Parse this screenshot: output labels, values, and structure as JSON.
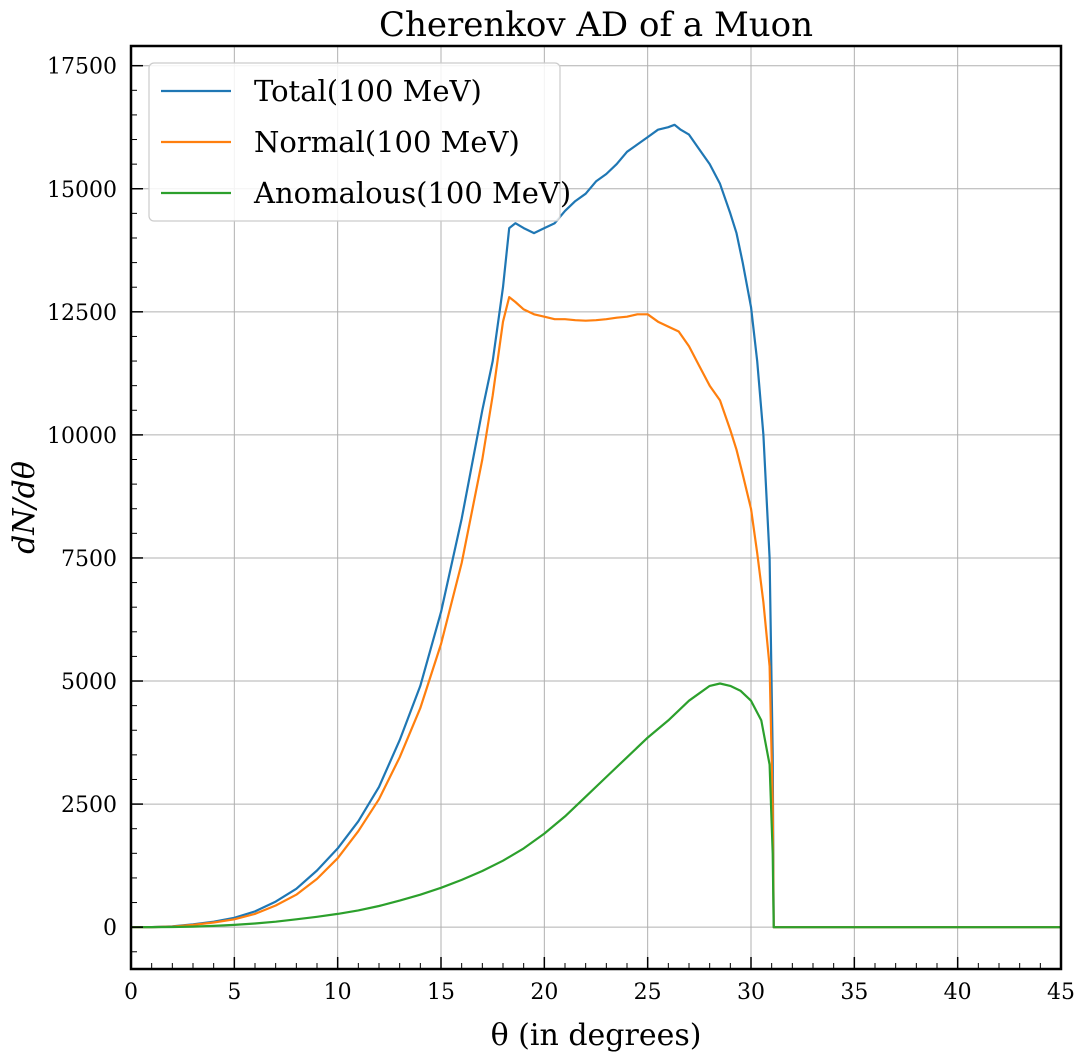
{
  "chart_data": {
    "type": "line",
    "title": "Cherenkov AD of a Muon",
    "xlabel": "θ (in degrees)",
    "ylabel": "dN/dθ",
    "xlim": [
      0,
      45
    ],
    "ylim": [
      -850,
      17900
    ],
    "x_ticks": [
      0,
      5,
      10,
      15,
      20,
      25,
      30,
      35,
      40,
      45
    ],
    "y_ticks": [
      0,
      2500,
      5000,
      7500,
      10000,
      12500,
      15000,
      17500
    ],
    "grid": true,
    "legend_position": "top-left",
    "series": [
      {
        "name": "Total(100 MeV)",
        "color": "#1f77b4",
        "x": [
          0,
          1,
          2,
          3,
          4,
          5,
          6,
          7,
          8,
          9,
          10,
          11,
          12,
          13,
          14,
          15,
          16,
          17,
          17.5,
          18,
          18.3,
          18.6,
          19,
          19.5,
          20,
          20.5,
          21,
          21.5,
          22,
          22.5,
          23,
          23.5,
          24,
          24.5,
          25,
          25.5,
          26,
          26.3,
          26.6,
          27,
          27.5,
          28,
          28.5,
          29,
          29.3,
          29.6,
          30,
          30.3,
          30.6,
          30.9,
          31.05,
          31.1,
          32,
          35,
          40,
          45
        ],
        "y": [
          0,
          2,
          15,
          55,
          110,
          190,
          320,
          520,
          780,
          1150,
          1600,
          2150,
          2850,
          3800,
          4900,
          6400,
          8300,
          10500,
          11500,
          13000,
          14200,
          14300,
          14200,
          14100,
          14200,
          14300,
          14550,
          14750,
          14900,
          15150,
          15300,
          15500,
          15750,
          15900,
          16050,
          16200,
          16250,
          16300,
          16200,
          16100,
          15800,
          15500,
          15100,
          14500,
          14100,
          13500,
          12600,
          11500,
          10000,
          7500,
          3500,
          0,
          0,
          0,
          0,
          0
        ]
      },
      {
        "name": "Normal(100 MeV)",
        "color": "#ff7f0e",
        "x": [
          0,
          1,
          2,
          3,
          4,
          5,
          6,
          7,
          8,
          9,
          10,
          11,
          12,
          13,
          14,
          15,
          16,
          17,
          17.5,
          18,
          18.3,
          18.6,
          19,
          19.5,
          20,
          20.5,
          21,
          21.5,
          22,
          22.5,
          23,
          23.5,
          24,
          24.5,
          25,
          25.5,
          26,
          26.5,
          27,
          27.5,
          28,
          28.5,
          29,
          29.3,
          29.6,
          30,
          30.3,
          30.6,
          30.9,
          31.05,
          31.1,
          32,
          35,
          40,
          45
        ],
        "y": [
          0,
          2,
          12,
          45,
          95,
          160,
          270,
          440,
          660,
          980,
          1400,
          1950,
          2600,
          3450,
          4450,
          5750,
          7400,
          9500,
          10800,
          12300,
          12800,
          12700,
          12550,
          12450,
          12400,
          12350,
          12350,
          12330,
          12320,
          12330,
          12350,
          12380,
          12400,
          12450,
          12450,
          12300,
          12200,
          12100,
          11800,
          11400,
          11000,
          10700,
          10100,
          9700,
          9200,
          8500,
          7600,
          6600,
          5300,
          2500,
          0,
          0,
          0,
          0,
          0
        ]
      },
      {
        "name": "Anomalous(100 MeV)",
        "color": "#2ca02c",
        "x": [
          0,
          1,
          2,
          3,
          4,
          5,
          6,
          7,
          8,
          9,
          10,
          11,
          12,
          13,
          14,
          15,
          16,
          17,
          18,
          19,
          20,
          21,
          22,
          23,
          24,
          25,
          26,
          27,
          27.5,
          28,
          28.5,
          29,
          29.5,
          30,
          30.5,
          30.9,
          31.05,
          31.1,
          32,
          35,
          40,
          45
        ],
        "y": [
          0,
          1,
          4,
          12,
          25,
          45,
          75,
          110,
          160,
          210,
          270,
          340,
          430,
          540,
          660,
          800,
          960,
          1140,
          1350,
          1600,
          1900,
          2250,
          2650,
          3050,
          3450,
          3850,
          4200,
          4600,
          4750,
          4900,
          4950,
          4900,
          4800,
          4600,
          4200,
          3300,
          1500,
          0,
          0,
          0,
          0,
          0
        ]
      }
    ]
  }
}
